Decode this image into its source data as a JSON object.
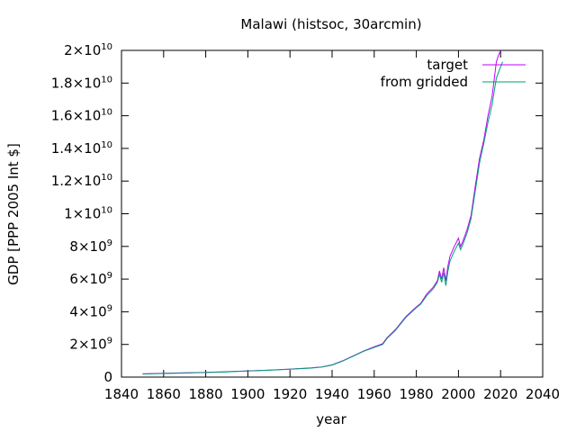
{
  "chart_data": {
    "type": "line",
    "title": "Malawi (histsoc, 30arcmin)",
    "xlabel": "year",
    "ylabel": "GDP [PPP 2005 Int $]",
    "xlim": [
      1840,
      2040
    ],
    "ylim": [
      0,
      20000000000
    ],
    "grid": false,
    "legend_position": "top-right",
    "x_ticks": [
      {
        "value": 1840,
        "label": "1840"
      },
      {
        "value": 1860,
        "label": "1860"
      },
      {
        "value": 1880,
        "label": "1880"
      },
      {
        "value": 1900,
        "label": "1900"
      },
      {
        "value": 1920,
        "label": "1920"
      },
      {
        "value": 1940,
        "label": "1940"
      },
      {
        "value": 1960,
        "label": "1960"
      },
      {
        "value": 1980,
        "label": "1980"
      },
      {
        "value": 2000,
        "label": "2000"
      },
      {
        "value": 2020,
        "label": "2020"
      },
      {
        "value": 2040,
        "label": "2040"
      }
    ],
    "y_ticks": [
      {
        "value": 0,
        "label": "0"
      },
      {
        "value": 2000000000,
        "mantissa": "2",
        "exponent": "9"
      },
      {
        "value": 4000000000,
        "mantissa": "4",
        "exponent": "9"
      },
      {
        "value": 6000000000,
        "mantissa": "6",
        "exponent": "9"
      },
      {
        "value": 8000000000,
        "mantissa": "8",
        "exponent": "9"
      },
      {
        "value": 10000000000,
        "mantissa": "1",
        "exponent": "10"
      },
      {
        "value": 12000000000,
        "mantissa": "1.2",
        "exponent": "10"
      },
      {
        "value": 14000000000,
        "mantissa": "1.4",
        "exponent": "10"
      },
      {
        "value": 16000000000,
        "mantissa": "1.6",
        "exponent": "10"
      },
      {
        "value": 18000000000,
        "mantissa": "1.8",
        "exponent": "10"
      },
      {
        "value": 20000000000,
        "mantissa": "2",
        "exponent": "10"
      }
    ],
    "series": [
      {
        "name": "target",
        "color": "#c000ff",
        "x": [
          1850,
          1860,
          1870,
          1880,
          1890,
          1900,
          1910,
          1920,
          1930,
          1935,
          1940,
          1945,
          1950,
          1955,
          1960,
          1964,
          1966,
          1970,
          1975,
          1980,
          1982,
          1985,
          1988,
          1990,
          1991,
          1992,
          1993,
          1994,
          1995,
          1996,
          1998,
          2000,
          2001,
          2002,
          2004,
          2006,
          2008,
          2010,
          2012,
          2014,
          2016,
          2018,
          2019,
          2020
        ],
        "y": [
          200000000,
          230000000,
          260000000,
          290000000,
          330000000,
          380000000,
          430000000,
          490000000,
          560000000,
          620000000,
          750000000,
          1000000000,
          1300000000,
          1600000000,
          1850000000,
          2050000000,
          2400000000,
          2900000000,
          3700000000,
          4300000000,
          4500000000,
          5100000000,
          5500000000,
          5900000000,
          6500000000,
          6000000000,
          6700000000,
          5900000000,
          6800000000,
          7400000000,
          8000000000,
          8500000000,
          8000000000,
          8300000000,
          9000000000,
          9900000000,
          11700000000,
          13400000000,
          14500000000,
          16000000000,
          17200000000,
          19300000000,
          19700000000,
          20000000000
        ]
      },
      {
        "name": "from gridded",
        "color": "#009e73",
        "x": [
          1850,
          1860,
          1870,
          1880,
          1890,
          1900,
          1910,
          1920,
          1930,
          1935,
          1940,
          1945,
          1950,
          1955,
          1960,
          1964,
          1966,
          1970,
          1975,
          1980,
          1982,
          1985,
          1988,
          1990,
          1991,
          1992,
          1993,
          1994,
          1995,
          1996,
          1998,
          2000,
          2001,
          2002,
          2004,
          2006,
          2008,
          2010,
          2012,
          2014,
          2016,
          2018,
          2020,
          2021
        ],
        "y": [
          190000000,
          220000000,
          250000000,
          280000000,
          320000000,
          370000000,
          420000000,
          480000000,
          550000000,
          610000000,
          740000000,
          980000000,
          1280000000,
          1580000000,
          1820000000,
          2000000000,
          2350000000,
          2850000000,
          3650000000,
          4250000000,
          4450000000,
          5000000000,
          5400000000,
          5800000000,
          6300000000,
          5800000000,
          6400000000,
          5600000000,
          6500000000,
          7100000000,
          7700000000,
          8200000000,
          7800000000,
          8100000000,
          8800000000,
          9700000000,
          11400000000,
          13100000000,
          14300000000,
          15600000000,
          16700000000,
          18300000000,
          19000000000,
          19300000000
        ]
      }
    ]
  }
}
